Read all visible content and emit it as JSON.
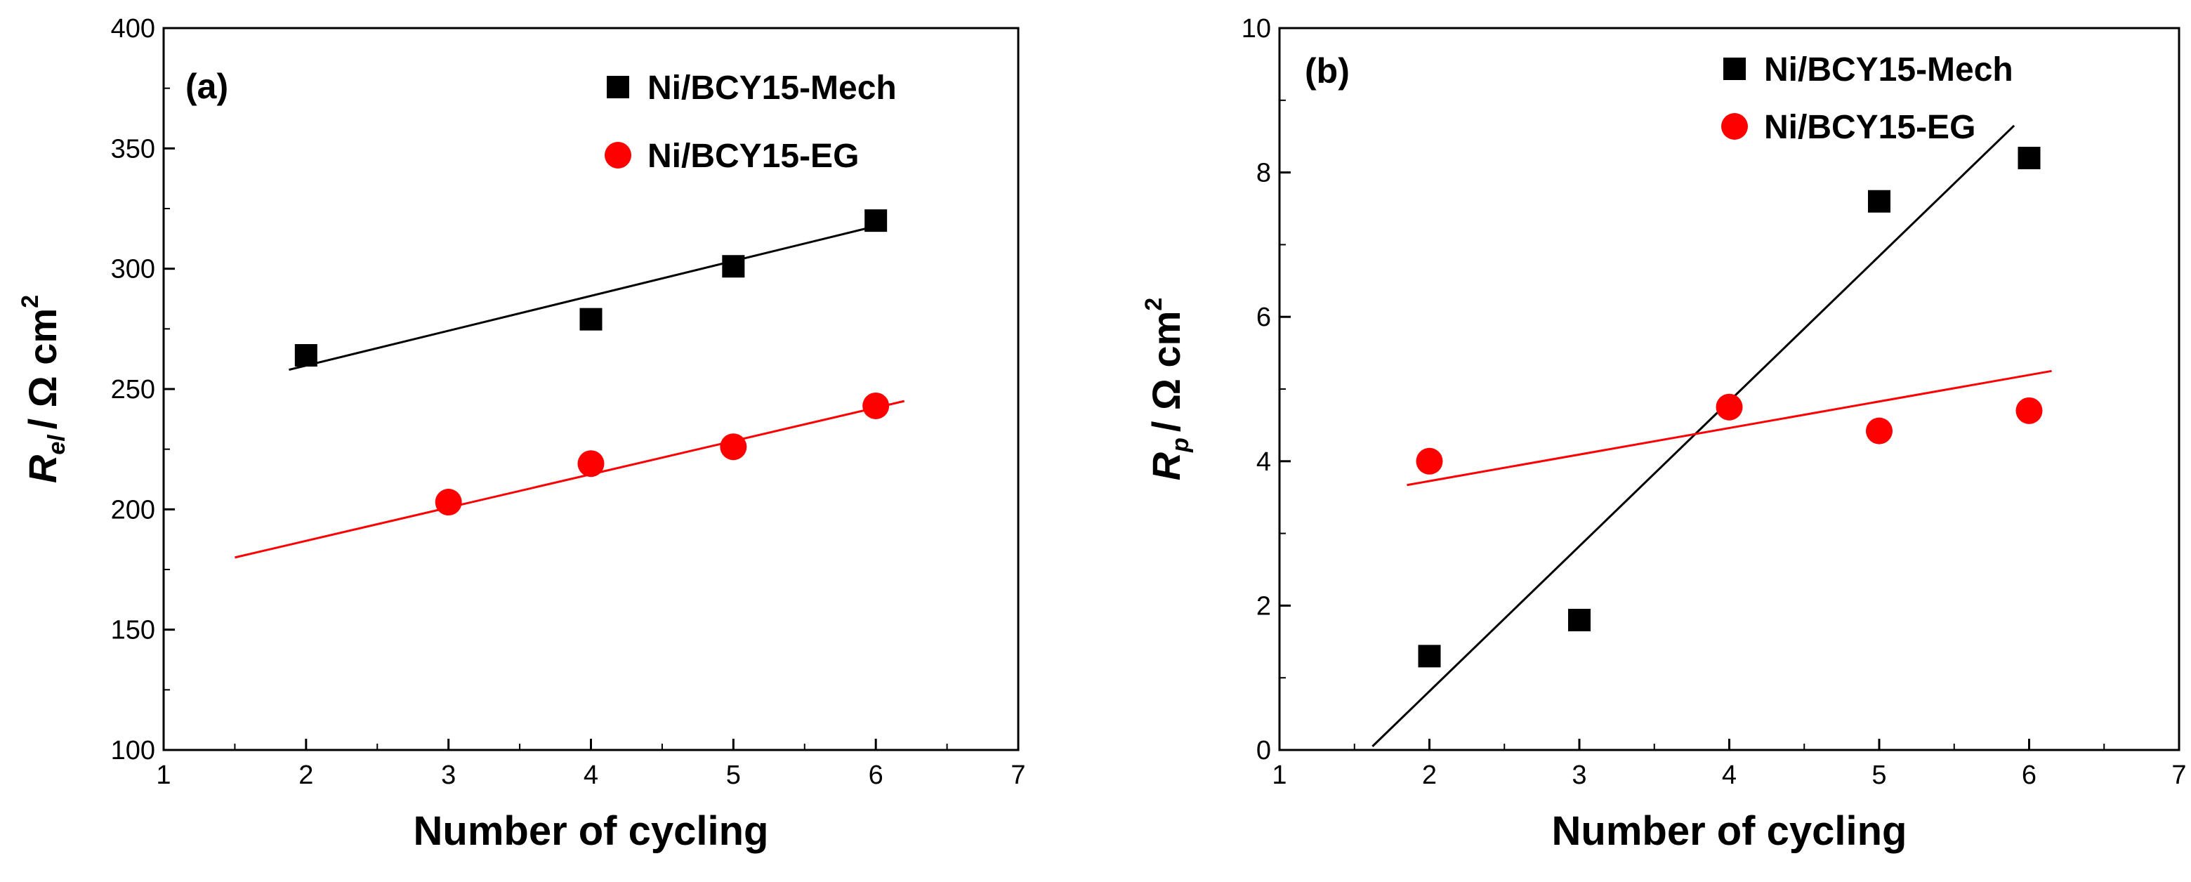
{
  "chart_data": [
    {
      "type": "scatter",
      "panel_label": "(a)",
      "xlabel": "Number of  cycling",
      "ylabel": {
        "symbol": "R",
        "subscript": "el",
        "unit": "/ Ω cm",
        "superscript": "2"
      },
      "xlim": [
        1,
        7
      ],
      "ylim": [
        100,
        400
      ],
      "xticks": [
        "1",
        "2",
        "3",
        "4",
        "5",
        "6",
        "7"
      ],
      "yticks": [
        "100",
        "150",
        "200",
        "250",
        "300",
        "350",
        "400"
      ],
      "series": [
        {
          "name": "Ni/BCY15-Mech",
          "marker": "square",
          "color": "#000000",
          "x": [
            2,
            4,
            5,
            6
          ],
          "y": [
            264,
            279,
            301,
            320
          ],
          "fit": {
            "x": [
              1.88,
              6.02
            ],
            "y": [
              258,
              318
            ]
          }
        },
        {
          "name": "Ni/BCY15-EG",
          "marker": "circle",
          "color": "#ff0000",
          "x": [
            3,
            4,
            5,
            6
          ],
          "y": [
            203,
            219,
            226,
            243
          ],
          "fit": {
            "x": [
              1.5,
              6.2
            ],
            "y": [
              180,
              245
            ]
          }
        }
      ]
    },
    {
      "type": "scatter",
      "panel_label": "(b)",
      "xlabel": "Number of cycling",
      "ylabel": {
        "symbol": "R",
        "subscript": "p",
        "unit": "/ Ω cm",
        "superscript": "2"
      },
      "xlim": [
        1,
        7
      ],
      "ylim": [
        0,
        10
      ],
      "xticks": [
        "1",
        "2",
        "3",
        "4",
        "5",
        "6",
        "7"
      ],
      "yticks": [
        "0",
        "2",
        "4",
        "6",
        "8",
        "10"
      ],
      "series": [
        {
          "name": "Ni/BCY15-Mech",
          "marker": "square",
          "color": "#000000",
          "x": [
            2,
            3,
            5,
            6
          ],
          "y": [
            1.3,
            1.8,
            7.6,
            8.2
          ],
          "fit": {
            "x": [
              1.62,
              5.9
            ],
            "y": [
              0.05,
              8.65
            ]
          }
        },
        {
          "name": "Ni/BCY15-EG",
          "marker": "circle",
          "color": "#ff0000",
          "x": [
            2,
            4,
            5,
            6
          ],
          "y": [
            4.0,
            4.75,
            4.42,
            4.7
          ],
          "fit": {
            "x": [
              1.85,
              6.15
            ],
            "y": [
              3.67,
              5.25
            ]
          }
        }
      ]
    }
  ]
}
